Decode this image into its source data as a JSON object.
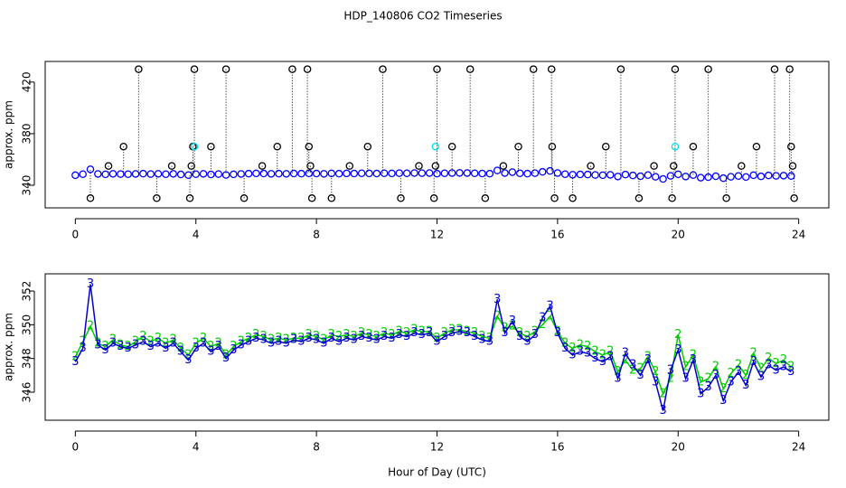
{
  "chart_data": [
    {
      "type": "scatter",
      "title": "HDP_140806  CO2 Timeseries",
      "ylabel": "approx. ppm",
      "xlim": [
        -1,
        25
      ],
      "ylim": [
        322.5,
        436
      ],
      "xticks": [
        0,
        4,
        8,
        12,
        16,
        20,
        24
      ],
      "yticks": [
        340,
        380,
        420
      ],
      "x": [
        0,
        0.25,
        0.5,
        0.75,
        1,
        1.25,
        1.5,
        1.75,
        2,
        2.25,
        2.5,
        2.75,
        3,
        3.25,
        3.5,
        3.75,
        4,
        4.25,
        4.5,
        4.75,
        5,
        5.25,
        5.5,
        5.75,
        6,
        6.25,
        6.5,
        6.75,
        7,
        7.25,
        7.5,
        7.75,
        8,
        8.25,
        8.5,
        8.75,
        9,
        9.25,
        9.5,
        9.75,
        10,
        10.25,
        10.5,
        10.75,
        11,
        11.25,
        11.5,
        11.75,
        12,
        12.25,
        12.5,
        12.75,
        13,
        13.25,
        13.5,
        13.75,
        14,
        14.25,
        14.5,
        14.75,
        15,
        15.25,
        15.5,
        15.75,
        16,
        16.25,
        16.5,
        16.75,
        17,
        17.25,
        17.5,
        17.75,
        18,
        18.25,
        18.5,
        18.75,
        19,
        19.25,
        19.5,
        19.75,
        20,
        20.25,
        20.5,
        20.75,
        21,
        21.25,
        21.5,
        21.75,
        22,
        22.25,
        22.5,
        22.75,
        23,
        23.25,
        23.5,
        23.75
      ],
      "series": [
        {
          "color": "#0000ff",
          "values": [
            347.8,
            348.6,
            352.4,
            348.8,
            348.5,
            348.9,
            348.7,
            348.6,
            348.8,
            349.0,
            348.7,
            348.9,
            348.6,
            348.9,
            348.4,
            347.9,
            348.6,
            348.9,
            348.4,
            348.7,
            348.0,
            348.5,
            348.8,
            349.0,
            349.2,
            349.1,
            348.9,
            349.0,
            348.9,
            349.1,
            349.0,
            349.2,
            349.1,
            348.9,
            349.2,
            349.0,
            349.2,
            349.1,
            349.3,
            349.2,
            349.1,
            349.3,
            349.2,
            349.4,
            349.3,
            349.5,
            349.4,
            349.5,
            349.0,
            349.3,
            349.5,
            349.6,
            349.5,
            349.3,
            349.1,
            349.0,
            351.5,
            349.5,
            350.2,
            349.3,
            349.0,
            349.4,
            350.4,
            351.1,
            349.5,
            348.6,
            348.2,
            348.4,
            348.3,
            348.0,
            347.8,
            348.1,
            346.8,
            348.3,
            347.6,
            347.0,
            347.9,
            346.6,
            344.9,
            347.3,
            348.5,
            346.8,
            347.9,
            345.9,
            346.3,
            347.0,
            345.5,
            346.6,
            347.2,
            346.4,
            347.8,
            346.9,
            347.6,
            347.3,
            347.5,
            347.2
          ]
        },
        {
          "color": "#000000",
          "drop": true,
          "x": [
            0.5,
            1.1,
            1.6,
            2.1,
            2.7,
            3.2,
            3.8,
            3.85,
            3.9,
            3.95,
            4.5,
            5.0,
            5.6,
            6.2,
            6.7,
            7.2,
            7.7,
            7.75,
            7.8,
            7.85,
            8.5,
            9.1,
            9.7,
            10.2,
            10.8,
            11.4,
            11.9,
            11.95,
            12.0,
            12.5,
            13.1,
            13.6,
            14.2,
            14.7,
            15.2,
            15.8,
            15.82,
            15.9,
            16.5,
            17.1,
            17.6,
            18.1,
            18.7,
            19.2,
            19.8,
            19.85,
            19.9,
            20.5,
            21.0,
            21.6,
            22.1,
            22.6,
            23.2,
            23.7,
            23.75,
            23.8,
            23.85
          ],
          "values": [
            330,
            355,
            370,
            430,
            330,
            355,
            330,
            355,
            370,
            430,
            370,
            430,
            330,
            355,
            370,
            430,
            430,
            370,
            355,
            330,
            330,
            355,
            370,
            430,
            330,
            355,
            330,
            355,
            430,
            370,
            430,
            330,
            355,
            370,
            430,
            430,
            370,
            330,
            330,
            355,
            370,
            430,
            330,
            355,
            330,
            355,
            430,
            370,
            430,
            330,
            355,
            370,
            430,
            430,
            370,
            355,
            330
          ]
        },
        {
          "color": "#00e5ee",
          "x": [
            3.95,
            11.95,
            19.9
          ],
          "values": [
            370,
            370,
            370
          ]
        }
      ]
    },
    {
      "type": "line",
      "ylabel": "approx. ppm",
      "xlabel": "Hour of Day (UTC)",
      "xlim": [
        -1,
        25
      ],
      "ylim": [
        344.34,
        353.02
      ],
      "xticks": [
        0,
        4,
        8,
        12,
        16,
        20,
        24
      ],
      "yticks": [
        346,
        348,
        350,
        352
      ],
      "x": [
        0,
        0.25,
        0.5,
        0.75,
        1,
        1.25,
        1.5,
        1.75,
        2,
        2.25,
        2.5,
        2.75,
        3,
        3.25,
        3.5,
        3.75,
        4,
        4.25,
        4.5,
        4.75,
        5,
        5.25,
        5.5,
        5.75,
        6,
        6.25,
        6.5,
        6.75,
        7,
        7.25,
        7.5,
        7.75,
        8,
        8.25,
        8.5,
        8.75,
        9,
        9.25,
        9.5,
        9.75,
        10,
        10.25,
        10.5,
        10.75,
        11,
        11.25,
        11.5,
        11.75,
        12,
        12.25,
        12.5,
        12.75,
        13,
        13.25,
        13.5,
        13.75,
        14,
        14.25,
        14.5,
        14.75,
        15,
        15.25,
        15.5,
        15.75,
        16,
        16.25,
        16.5,
        16.75,
        17,
        17.25,
        17.5,
        17.75,
        18,
        18.25,
        18.5,
        18.75,
        19,
        19.25,
        19.5,
        19.75,
        20,
        20.25,
        20.5,
        20.75,
        21,
        21.25,
        21.5,
        21.75,
        22,
        22.25,
        22.5,
        22.75,
        23,
        23.25,
        23.5,
        23.75
      ],
      "series": [
        {
          "color": "#00cd00",
          "marker": "2",
          "values": [
            348.1,
            349.0,
            349.9,
            348.9,
            348.7,
            349.1,
            348.8,
            348.7,
            349.0,
            349.3,
            349.0,
            349.2,
            348.9,
            349.1,
            348.6,
            348.2,
            348.9,
            349.2,
            348.7,
            348.9,
            348.2,
            348.7,
            349.0,
            349.2,
            349.4,
            349.3,
            349.1,
            349.2,
            349.1,
            349.2,
            349.2,
            349.4,
            349.3,
            349.1,
            349.4,
            349.3,
            349.4,
            349.3,
            349.5,
            349.4,
            349.3,
            349.5,
            349.4,
            349.6,
            349.5,
            349.7,
            349.6,
            349.6,
            349.2,
            349.5,
            349.7,
            349.7,
            349.6,
            349.5,
            349.3,
            349.2,
            350.5,
            349.8,
            349.9,
            349.5,
            349.3,
            349.6,
            350.0,
            350.5,
            349.6,
            348.9,
            348.6,
            348.8,
            348.7,
            348.4,
            348.2,
            348.4,
            347.2,
            347.9,
            347.3,
            347.4,
            348.1,
            347.2,
            345.9,
            346.8,
            349.4,
            347.5,
            348.2,
            346.6,
            346.8,
            347.5,
            346.2,
            347.1,
            347.6,
            347.0,
            348.3,
            347.4,
            348.0,
            347.7,
            347.9,
            347.5
          ]
        },
        {
          "color": "#0000cd",
          "marker": "3",
          "values": [
            347.8,
            348.6,
            352.4,
            348.8,
            348.5,
            348.9,
            348.7,
            348.6,
            348.8,
            349.0,
            348.7,
            348.9,
            348.6,
            348.9,
            348.4,
            347.9,
            348.6,
            348.9,
            348.4,
            348.7,
            348.0,
            348.5,
            348.8,
            349.0,
            349.2,
            349.1,
            348.9,
            349.0,
            348.9,
            349.1,
            349.0,
            349.2,
            349.1,
            348.9,
            349.2,
            349.0,
            349.2,
            349.1,
            349.3,
            349.2,
            349.1,
            349.3,
            349.2,
            349.4,
            349.3,
            349.5,
            349.4,
            349.5,
            349.0,
            349.3,
            349.5,
            349.6,
            349.5,
            349.3,
            349.1,
            349.0,
            351.5,
            349.5,
            350.2,
            349.3,
            349.0,
            349.4,
            350.4,
            351.1,
            349.5,
            348.6,
            348.2,
            348.4,
            348.3,
            348.0,
            347.8,
            348.1,
            346.8,
            348.3,
            347.6,
            347.0,
            347.9,
            346.6,
            344.9,
            347.3,
            348.5,
            346.8,
            347.9,
            345.9,
            346.3,
            347.0,
            345.5,
            346.6,
            347.2,
            346.4,
            347.8,
            346.9,
            347.6,
            347.3,
            347.5,
            347.2
          ]
        }
      ]
    }
  ]
}
